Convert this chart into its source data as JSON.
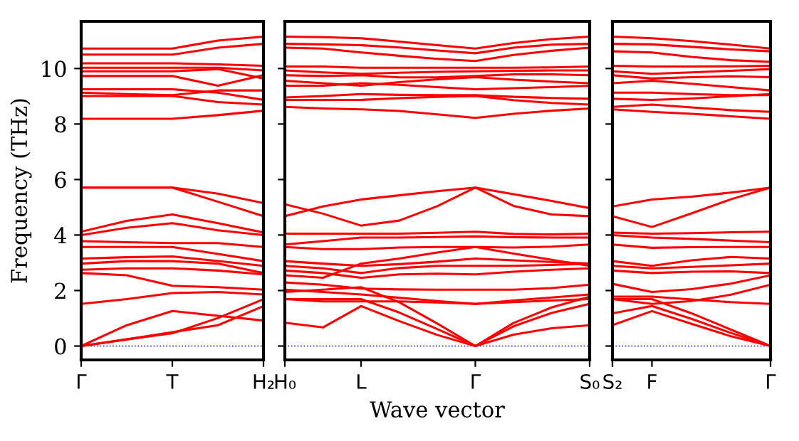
{
  "chart_data": [
    {
      "type": "line",
      "color": "#ff0000",
      "ylabel": "Frequency (THz)",
      "ylim": [
        -0.5,
        11.7
      ],
      "yticks": [
        0,
        2,
        4,
        6,
        8,
        10
      ],
      "ref_lines": [
        {
          "axis": "y",
          "value": 0,
          "color": "#0000ff",
          "line_style": "dotted"
        }
      ],
      "categories": [
        "Γ",
        null,
        "T",
        null,
        "H₂"
      ],
      "series": [
        {
          "values": [
            10.72,
            10.72,
            10.72,
            11.01,
            11.15
          ]
        },
        {
          "values": [
            10.5,
            10.5,
            10.5,
            10.75,
            10.89
          ]
        },
        {
          "values": [
            10.19,
            10.19,
            10.19,
            10.15,
            10.1
          ]
        },
        {
          "values": [
            10.03,
            10.03,
            10.03,
            10.03,
            9.93
          ]
        },
        {
          "values": [
            9.9,
            9.9,
            9.9,
            9.98,
            9.64
          ]
        },
        {
          "values": [
            9.73,
            9.73,
            9.73,
            9.38,
            9.76
          ]
        },
        {
          "values": [
            9.25,
            9.25,
            9.25,
            9.13,
            8.87
          ]
        },
        {
          "values": [
            9.13,
            9.08,
            9.04,
            9.21,
            9.21
          ]
        },
        {
          "values": [
            9.01,
            9.01,
            9.01,
            8.79,
            8.7
          ]
        },
        {
          "values": [
            8.19,
            8.19,
            8.19,
            8.32,
            8.48
          ]
        },
        {
          "values": [
            5.71,
            5.71,
            5.71,
            5.49,
            5.15
          ]
        },
        {
          "values": [
            5.71,
            5.71,
            5.71,
            5.2,
            4.68
          ]
        },
        {
          "values": [
            4.12,
            4.51,
            4.74,
            4.43,
            4.09
          ]
        },
        {
          "values": [
            4.0,
            4.26,
            4.43,
            4.17,
            4.0
          ]
        },
        {
          "values": [
            3.78,
            3.74,
            3.71,
            3.71,
            3.57
          ]
        },
        {
          "values": [
            3.57,
            3.57,
            3.57,
            3.32,
            3.06
          ]
        },
        {
          "values": [
            3.15,
            3.2,
            3.23,
            3.06,
            2.89
          ]
        },
        {
          "values": [
            2.97,
            3.06,
            3.06,
            2.97,
            2.63
          ]
        },
        {
          "values": [
            2.75,
            2.8,
            2.8,
            2.72,
            2.58
          ]
        },
        {
          "values": [
            2.63,
            2.55,
            2.17,
            2.12,
            2.03
          ]
        },
        {
          "values": [
            1.52,
            1.69,
            1.91,
            1.95,
            1.86
          ]
        },
        {
          "values": [
            0,
            0.24,
            0.46,
            1.01,
            1.69
          ]
        },
        {
          "values": [
            0,
            0.24,
            0.5,
            0.75,
            1.44
          ]
        },
        {
          "values": [
            0,
            0.75,
            1.26,
            1.09,
            0.92
          ]
        }
      ]
    },
    {
      "type": "line",
      "color": "#ff0000",
      "xlabel": "Wave vector",
      "tick_labels": "x",
      "ylim": [
        -0.5,
        11.7
      ],
      "yticks": [
        0,
        2,
        4,
        6,
        8,
        10
      ],
      "ref_lines": [
        {
          "axis": "y",
          "value": 0,
          "color": "#0000ff",
          "line_style": "dotted"
        }
      ],
      "categories": [
        "H₀",
        null,
        "L",
        null,
        null,
        "Γ",
        null,
        null,
        "S₀"
      ],
      "series": [
        {
          "values": [
            11.15,
            11.13,
            11.09,
            10.97,
            10.84,
            10.72,
            10.92,
            11.06,
            11.15
          ]
        },
        {
          "values": [
            10.89,
            10.87,
            10.84,
            10.76,
            10.65,
            10.55,
            10.75,
            10.86,
            10.89
          ]
        },
        {
          "values": [
            10.75,
            10.72,
            10.58,
            10.46,
            10.35,
            10.27,
            10.49,
            10.64,
            10.75
          ]
        },
        {
          "values": [
            10.07,
            10.07,
            10.03,
            10.03,
            10.03,
            10.03,
            10.03,
            10.04,
            10.07
          ]
        },
        {
          "values": [
            9.93,
            9.86,
            9.81,
            9.85,
            9.88,
            9.9,
            9.92,
            9.93,
            9.93
          ]
        },
        {
          "values": [
            9.76,
            9.73,
            9.76,
            9.68,
            9.68,
            9.73,
            9.79,
            9.79,
            9.76
          ]
        },
        {
          "values": [
            9.56,
            9.47,
            9.38,
            9.51,
            9.61,
            9.69,
            9.6,
            9.53,
            9.47
          ]
        },
        {
          "values": [
            9.38,
            9.38,
            9.47,
            9.41,
            9.33,
            9.25,
            9.29,
            9.33,
            9.38
          ]
        },
        {
          "values": [
            8.96,
            9.01,
            9.08,
            9.05,
            9.04,
            9.04,
            8.98,
            8.94,
            8.91
          ]
        },
        {
          "values": [
            8.87,
            8.87,
            8.87,
            8.93,
            8.98,
            9.01,
            8.86,
            8.76,
            8.7
          ]
        },
        {
          "values": [
            8.62,
            8.56,
            8.53,
            8.47,
            8.35,
            8.22,
            8.37,
            8.48,
            8.56
          ]
        },
        {
          "values": [
            4.68,
            5.03,
            5.28,
            5.43,
            5.58,
            5.71,
            5.47,
            5.23,
            4.97
          ]
        },
        {
          "values": [
            5.11,
            4.77,
            4.34,
            4.52,
            5.04,
            5.71,
            5.05,
            4.74,
            4.68
          ]
        },
        {
          "values": [
            4.05,
            4.05,
            4.05,
            4.05,
            4.08,
            4.12,
            4.04,
            4.02,
            4.05
          ]
        },
        {
          "values": [
            3.66,
            3.78,
            3.91,
            3.91,
            3.93,
            3.95,
            3.92,
            3.91,
            3.91
          ]
        },
        {
          "values": [
            3.57,
            3.49,
            3.49,
            3.55,
            3.57,
            3.57,
            3.55,
            3.58,
            3.66
          ]
        },
        {
          "values": [
            3.06,
            2.97,
            2.89,
            2.95,
            3.04,
            3.15,
            3.09,
            3.03,
            2.97
          ]
        },
        {
          "values": [
            2.89,
            2.8,
            2.63,
            2.81,
            2.89,
            2.89,
            2.89,
            2.92,
            2.97
          ]
        },
        {
          "values": [
            2.72,
            2.63,
            2.46,
            2.58,
            2.61,
            2.58,
            2.68,
            2.75,
            2.8
          ]
        },
        {
          "values": [
            2.55,
            2.46,
            2.97,
            3.15,
            3.37,
            3.57,
            3.33,
            3.11,
            2.89
          ]
        },
        {
          "values": [
            2.29,
            2.21,
            2.07,
            2.04,
            2.03,
            2.03,
            2.03,
            2.09,
            2.21
          ]
        },
        {
          "values": [
            2.03,
            1.95,
            1.86,
            1.74,
            1.62,
            1.52,
            1.64,
            1.75,
            1.86
          ]
        },
        {
          "values": [
            1.69,
            1.61,
            1.61,
            1.61,
            1.57,
            1.52,
            1.58,
            1.64,
            1.69
          ]
        },
        {
          "values": [
            0.84,
            0.67,
            1.44,
            0.9,
            0.4,
            0,
            0.41,
            0.64,
            0.75
          ]
        },
        {
          "values": [
            1.69,
            1.69,
            1.69,
            1.21,
            0.61,
            0,
            0.71,
            1.19,
            1.52
          ]
        },
        {
          "values": [
            1.95,
            2.03,
            2.12,
            1.58,
            0.81,
            0,
            0.83,
            1.39,
            1.78
          ]
        }
      ]
    },
    {
      "type": "line",
      "color": "#ff0000",
      "tick_labels": "x",
      "ylim": [
        -0.5,
        11.7
      ],
      "yticks": [
        0,
        2,
        4,
        6,
        8,
        10
      ],
      "ref_lines": [
        {
          "axis": "y",
          "value": 0,
          "color": "#0000ff",
          "line_style": "dotted"
        }
      ],
      "categories": [
        "S₂",
        "F",
        null,
        null,
        "Γ"
      ],
      "series": [
        {
          "values": [
            11.15,
            11.09,
            10.99,
            10.86,
            10.72
          ]
        },
        {
          "values": [
            10.89,
            10.87,
            10.78,
            10.69,
            10.62
          ]
        },
        {
          "values": [
            10.62,
            10.58,
            10.42,
            10.3,
            10.24
          ]
        },
        {
          "values": [
            10.1,
            10.07,
            10.07,
            10.08,
            10.1
          ]
        },
        {
          "values": [
            9.9,
            9.81,
            9.86,
            9.92,
            9.98
          ]
        },
        {
          "values": [
            9.76,
            9.64,
            9.69,
            9.72,
            9.69
          ]
        },
        {
          "values": [
            9.47,
            9.56,
            9.45,
            9.33,
            9.21
          ]
        },
        {
          "values": [
            9.13,
            9.13,
            9.08,
            9.04,
            9.04
          ]
        },
        {
          "values": [
            8.91,
            8.87,
            8.92,
            9.0,
            9.08
          ]
        },
        {
          "values": [
            8.62,
            8.7,
            8.6,
            8.5,
            8.44
          ]
        },
        {
          "values": [
            8.53,
            8.44,
            8.37,
            8.28,
            8.19
          ]
        },
        {
          "values": [
            5.03,
            5.28,
            5.38,
            5.53,
            5.71
          ]
        },
        {
          "values": [
            4.68,
            4.29,
            4.78,
            5.29,
            5.71
          ]
        },
        {
          "values": [
            4.09,
            4.05,
            4.07,
            4.1,
            4.12
          ]
        },
        {
          "values": [
            4.0,
            3.91,
            3.86,
            3.8,
            3.74
          ]
        },
        {
          "values": [
            3.66,
            3.54,
            3.56,
            3.57,
            3.57
          ]
        },
        {
          "values": [
            3.06,
            2.89,
            3.09,
            3.21,
            3.15
          ]
        },
        {
          "values": [
            2.89,
            2.8,
            2.85,
            2.91,
            2.97
          ]
        },
        {
          "values": [
            2.72,
            2.63,
            2.68,
            2.69,
            2.63
          ]
        },
        {
          "values": [
            2.24,
            1.95,
            2.05,
            2.25,
            2.55
          ]
        },
        {
          "values": [
            1.78,
            1.78,
            1.68,
            1.58,
            1.52
          ]
        },
        {
          "values": [
            1.69,
            1.52,
            1.62,
            1.85,
            2.21
          ]
        },
        {
          "values": [
            0.75,
            1.26,
            0.8,
            0.35,
            0
          ]
        },
        {
          "values": [
            1.18,
            1.44,
            0.98,
            0.47,
            0
          ]
        },
        {
          "values": [
            1.69,
            1.69,
            1.18,
            0.59,
            0
          ]
        }
      ]
    }
  ]
}
